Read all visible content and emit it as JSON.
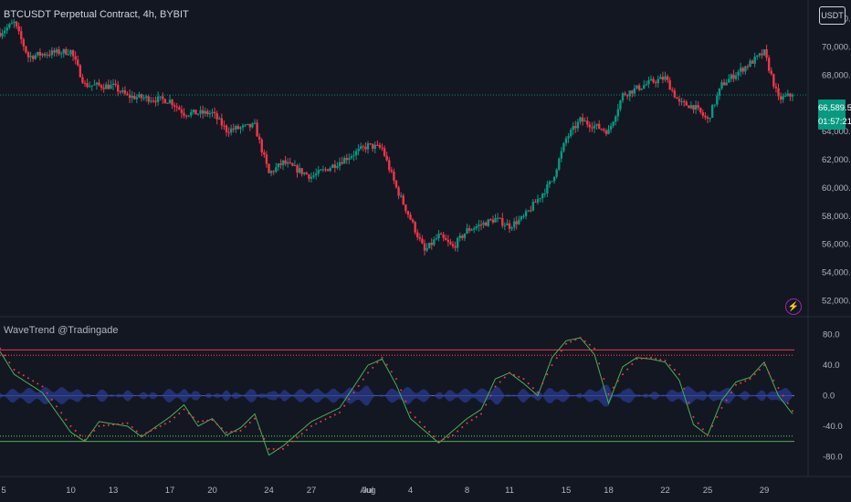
{
  "header": {
    "title": "BTCUSDT Perpetual Contract, 4h, BYBIT",
    "currency_button": "USDT"
  },
  "price_axis": {
    "labels": [
      "72,000.0",
      "70,000.0",
      "68,000.0",
      "64,000.0",
      "62,000.0",
      "60,000.0",
      "58,000.0",
      "56,000.0",
      "54,000.0",
      "52,000.0"
    ],
    "last_price": "66,589.5",
    "countdown": "01:57:21"
  },
  "indicator": {
    "title": "WaveTrend @Tradingade",
    "axis_labels": [
      "80.0",
      "40.0",
      "0.0",
      "-40.0",
      "-80.0"
    ]
  },
  "time_axis": {
    "labels": [
      "5",
      "10",
      "13",
      "17",
      "20",
      "24",
      "27",
      "Jul",
      "4",
      "8",
      "11",
      "15",
      "18",
      "22",
      "25",
      "29",
      "Aug"
    ]
  },
  "colors": {
    "background": "#131722",
    "up": "#089981",
    "down": "#f23645",
    "upper_line": "#f23645",
    "lower_line": "#4caf50",
    "zero_line": "#5b7fd6",
    "histogram": "#2a3a8c",
    "wt1": "#4caf50",
    "wt2": "#f23645"
  },
  "chart_data": [
    {
      "type": "candlestick",
      "symbol": "BTCUSDT Perpetual Contract",
      "interval": "4h",
      "exchange": "BYBIT",
      "ylim": [
        51000,
        73000
      ],
      "anchors": [
        {
          "t": "Jun 5",
          "v": 71000
        },
        {
          "t": "Jun 6",
          "v": 71700
        },
        {
          "t": "Jun 7",
          "v": 69300
        },
        {
          "t": "Jun 8",
          "v": 69500
        },
        {
          "t": "Jun 10",
          "v": 69700
        },
        {
          "t": "Jun 11",
          "v": 67300
        },
        {
          "t": "Jun 13",
          "v": 67200
        },
        {
          "t": "Jun 14",
          "v": 66500
        },
        {
          "t": "Jun 17",
          "v": 66200
        },
        {
          "t": "Jun 18",
          "v": 65300
        },
        {
          "t": "Jun 20",
          "v": 65300
        },
        {
          "t": "Jun 21",
          "v": 64100
        },
        {
          "t": "Jun 23",
          "v": 64400
        },
        {
          "t": "Jun 24",
          "v": 61000
        },
        {
          "t": "Jun 25",
          "v": 61800
        },
        {
          "t": "Jun 27",
          "v": 60800
        },
        {
          "t": "Jun 28",
          "v": 61300
        },
        {
          "t": "Jul 1",
          "v": 63000
        },
        {
          "t": "Jul 2",
          "v": 62800
        },
        {
          "t": "Jul 3",
          "v": 60000
        },
        {
          "t": "Jul 4",
          "v": 57800
        },
        {
          "t": "Jul 5",
          "v": 55500
        },
        {
          "t": "Jul 6",
          "v": 56600
        },
        {
          "t": "Jul 7",
          "v": 55800
        },
        {
          "t": "Jul 8",
          "v": 57000
        },
        {
          "t": "Jul 10",
          "v": 57800
        },
        {
          "t": "Jul 11",
          "v": 57300
        },
        {
          "t": "Jul 12",
          "v": 57900
        },
        {
          "t": "Jul 14",
          "v": 60500
        },
        {
          "t": "Jul 15",
          "v": 63500
        },
        {
          "t": "Jul 16",
          "v": 64800
        },
        {
          "t": "Jul 18",
          "v": 64000
        },
        {
          "t": "Jul 19",
          "v": 66600
        },
        {
          "t": "Jul 21",
          "v": 67500
        },
        {
          "t": "Jul 22",
          "v": 67800
        },
        {
          "t": "Jul 23",
          "v": 66000
        },
        {
          "t": "Jul 24",
          "v": 65800
        },
        {
          "t": "Jul 25",
          "v": 64800
        },
        {
          "t": "Jul 26",
          "v": 67300
        },
        {
          "t": "Jul 27",
          "v": 68100
        },
        {
          "t": "Jul 29",
          "v": 69600
        },
        {
          "t": "Jul 30",
          "v": 66300
        },
        {
          "t": "Jul 31",
          "v": 66589.5
        }
      ],
      "last": 66589.5
    },
    {
      "type": "line",
      "title": "WaveTrend @Tradingade",
      "ylim": [
        -100,
        100
      ],
      "levels": {
        "overbought": 60,
        "overbought_2": 53,
        "oversold": -53,
        "oversold_2": -60,
        "zero": 0
      },
      "series": [
        {
          "name": "wt1",
          "anchors": [
            {
              "t": "Jun 5",
              "v": 58
            },
            {
              "t": "Jun 6",
              "v": 28
            },
            {
              "t": "Jun 8",
              "v": 4
            },
            {
              "t": "Jun 10",
              "v": -48
            },
            {
              "t": "Jun 11",
              "v": -60
            },
            {
              "t": "Jun 12",
              "v": -34
            },
            {
              "t": "Jun 14",
              "v": -40
            },
            {
              "t": "Jun 15",
              "v": -54
            },
            {
              "t": "Jun 17",
              "v": -28
            },
            {
              "t": "Jun 18",
              "v": -12
            },
            {
              "t": "Jun 19",
              "v": -40
            },
            {
              "t": "Jun 20",
              "v": -30
            },
            {
              "t": "Jun 21",
              "v": -52
            },
            {
              "t": "Jun 22",
              "v": -42
            },
            {
              "t": "Jun 23",
              "v": -24
            },
            {
              "t": "Jun 24",
              "v": -78
            },
            {
              "t": "Jun 25",
              "v": -66
            },
            {
              "t": "Jun 27",
              "v": -34
            },
            {
              "t": "Jun 29",
              "v": -16
            },
            {
              "t": "Jul 1",
              "v": 40
            },
            {
              "t": "Jul 2",
              "v": 48
            },
            {
              "t": "Jul 3",
              "v": 14
            },
            {
              "t": "Jul 4",
              "v": -30
            },
            {
              "t": "Jul 6",
              "v": -62
            },
            {
              "t": "Jul 7",
              "v": -46
            },
            {
              "t": "Jul 8",
              "v": -30
            },
            {
              "t": "Jul 9",
              "v": -18
            },
            {
              "t": "Jul 10",
              "v": 22
            },
            {
              "t": "Jul 11",
              "v": 30
            },
            {
              "t": "Jul 12",
              "v": 16
            },
            {
              "t": "Jul 13",
              "v": 0
            },
            {
              "t": "Jul 14",
              "v": 50
            },
            {
              "t": "Jul 15",
              "v": 72
            },
            {
              "t": "Jul 16",
              "v": 76
            },
            {
              "t": "Jul 17",
              "v": 54
            },
            {
              "t": "Jul 18",
              "v": -10
            },
            {
              "t": "Jul 19",
              "v": 38
            },
            {
              "t": "Jul 20",
              "v": 50
            },
            {
              "t": "Jul 21",
              "v": 48
            },
            {
              "t": "Jul 22",
              "v": 44
            },
            {
              "t": "Jul 23",
              "v": 20
            },
            {
              "t": "Jul 24",
              "v": -38
            },
            {
              "t": "Jul 25",
              "v": -52
            },
            {
              "t": "Jul 26",
              "v": -6
            },
            {
              "t": "Jul 27",
              "v": 18
            },
            {
              "t": "Jul 28",
              "v": 24
            },
            {
              "t": "Jul 29",
              "v": 44
            },
            {
              "t": "Jul 30",
              "v": 0
            },
            {
              "t": "Jul 31",
              "v": -24
            }
          ]
        },
        {
          "name": "wt2",
          "anchors": [
            {
              "t": "Jun 5",
              "v": 62
            },
            {
              "t": "Jun 6",
              "v": 34
            },
            {
              "t": "Jun 8",
              "v": 12
            },
            {
              "t": "Jun 10",
              "v": -40
            },
            {
              "t": "Jun 11",
              "v": -58
            },
            {
              "t": "Jun 12",
              "v": -40
            },
            {
              "t": "Jun 14",
              "v": -36
            },
            {
              "t": "Jun 15",
              "v": -52
            },
            {
              "t": "Jun 17",
              "v": -34
            },
            {
              "t": "Jun 18",
              "v": -18
            },
            {
              "t": "Jun 19",
              "v": -34
            },
            {
              "t": "Jun 20",
              "v": -32
            },
            {
              "t": "Jun 21",
              "v": -48
            },
            {
              "t": "Jun 22",
              "v": -46
            },
            {
              "t": "Jun 23",
              "v": -30
            },
            {
              "t": "Jun 24",
              "v": -70
            },
            {
              "t": "Jun 25",
              "v": -70
            },
            {
              "t": "Jun 27",
              "v": -40
            },
            {
              "t": "Jun 29",
              "v": -22
            },
            {
              "t": "Jul 1",
              "v": 30
            },
            {
              "t": "Jul 2",
              "v": 50
            },
            {
              "t": "Jul 3",
              "v": 22
            },
            {
              "t": "Jul 4",
              "v": -22
            },
            {
              "t": "Jul 6",
              "v": -60
            },
            {
              "t": "Jul 7",
              "v": -52
            },
            {
              "t": "Jul 8",
              "v": -36
            },
            {
              "t": "Jul 9",
              "v": -24
            },
            {
              "t": "Jul 10",
              "v": 12
            },
            {
              "t": "Jul 11",
              "v": 30
            },
            {
              "t": "Jul 12",
              "v": 22
            },
            {
              "t": "Jul 13",
              "v": 4
            },
            {
              "t": "Jul 14",
              "v": 40
            },
            {
              "t": "Jul 15",
              "v": 68
            },
            {
              "t": "Jul 16",
              "v": 76
            },
            {
              "t": "Jul 17",
              "v": 62
            },
            {
              "t": "Jul 18",
              "v": 2
            },
            {
              "t": "Jul 19",
              "v": 28
            },
            {
              "t": "Jul 20",
              "v": 48
            },
            {
              "t": "Jul 21",
              "v": 50
            },
            {
              "t": "Jul 22",
              "v": 46
            },
            {
              "t": "Jul 23",
              "v": 28
            },
            {
              "t": "Jul 24",
              "v": -28
            },
            {
              "t": "Jul 25",
              "v": -52
            },
            {
              "t": "Jul 26",
              "v": -16
            },
            {
              "t": "Jul 27",
              "v": 14
            },
            {
              "t": "Jul 28",
              "v": 22
            },
            {
              "t": "Jul 29",
              "v": 40
            },
            {
              "t": "Jul 30",
              "v": 10
            },
            {
              "t": "Jul 31",
              "v": -20
            }
          ]
        }
      ]
    }
  ]
}
